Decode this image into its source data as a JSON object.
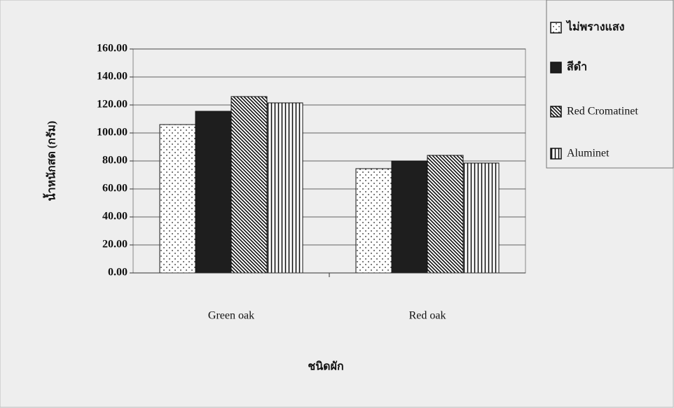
{
  "chart_data": {
    "type": "bar",
    "x_label": "ชนิดผัก",
    "y_label": "น้ำหนักสด (กรัม)",
    "categories": [
      "Green oak",
      "Red oak"
    ],
    "series": [
      {
        "name": "ไม่พรางแสง",
        "color": "#ffffff",
        "pattern": "dots",
        "values": [
          106,
          74.5
        ]
      },
      {
        "name": "สีดำ",
        "color": "#1e1e1e",
        "pattern": "solid",
        "values": [
          115.5,
          80
        ]
      },
      {
        "name": "Red Cromatinet",
        "color": "#ffffff",
        "pattern": "diagonal",
        "values": [
          126,
          84
        ]
      },
      {
        "name": "Aluminet",
        "color": "#ffffff",
        "pattern": "vertical",
        "values": [
          121.5,
          78.5
        ]
      }
    ],
    "ylim": [
      0,
      160
    ],
    "yticks": [
      {
        "value": 0,
        "label": "0.00"
      },
      {
        "value": 20,
        "label": "20.00"
      },
      {
        "value": 40,
        "label": "40.00"
      },
      {
        "value": 60,
        "label": "60.00"
      },
      {
        "value": 80,
        "label": "80.00"
      },
      {
        "value": 100,
        "label": "100.00"
      },
      {
        "value": 120,
        "label": "120.00"
      },
      {
        "value": 140,
        "label": "140.00"
      },
      {
        "value": 160,
        "label": "160.00"
      }
    ],
    "grid": true,
    "legend": "right"
  }
}
